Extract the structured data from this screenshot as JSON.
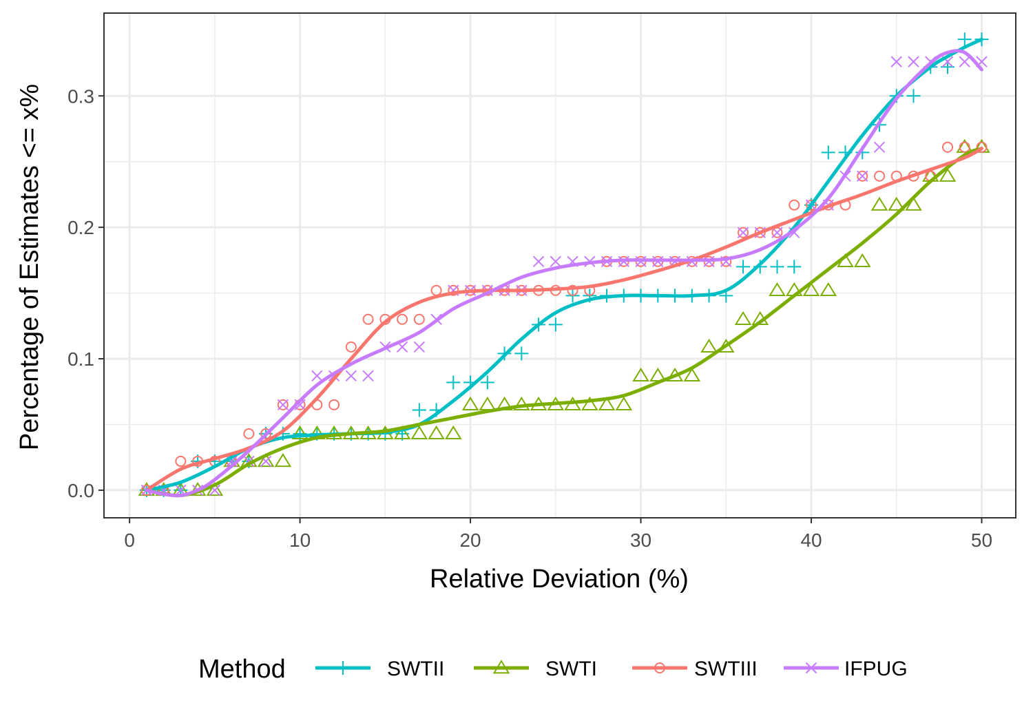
{
  "chart_data": {
    "type": "scatter",
    "xlabel": "Relative Deviation (%)",
    "ylabel": "Percentage of Estimates <= x%",
    "xlim": [
      -1.5,
      52
    ],
    "ylim": [
      -0.021,
      0.363
    ],
    "xticks": [
      0,
      10,
      20,
      30,
      40,
      50
    ],
    "yticks": [
      0.0,
      0.1,
      0.2,
      0.3
    ],
    "xtick_labels": [
      "0",
      "10",
      "20",
      "30",
      "40",
      "50"
    ],
    "ytick_labels": [
      "0.0",
      "0.1",
      "0.2",
      "0.3"
    ],
    "grid": true,
    "legend_title": "Method",
    "legend_position": "bottom",
    "series": [
      {
        "name": "SWTII",
        "color": "#00BFC4",
        "marker": "plus",
        "x": [
          1,
          2,
          3,
          4,
          5,
          6,
          7,
          8,
          9,
          10,
          11,
          12,
          13,
          14,
          15,
          16,
          17,
          18,
          19,
          20,
          21,
          22,
          23,
          24,
          25,
          26,
          27,
          28,
          29,
          30,
          31,
          32,
          33,
          34,
          35,
          36,
          37,
          38,
          39,
          40,
          41,
          42,
          43,
          44,
          45,
          46,
          47,
          48,
          49,
          50
        ],
        "y": [
          0,
          0,
          0,
          0.022,
          0.022,
          0.022,
          0.022,
          0.043,
          0.043,
          0.043,
          0.043,
          0.043,
          0.043,
          0.043,
          0.043,
          0.043,
          0.061,
          0.061,
          0.082,
          0.082,
          0.082,
          0.104,
          0.104,
          0.126,
          0.126,
          0.148,
          0.148,
          0.148,
          0.148,
          0.148,
          0.148,
          0.148,
          0.148,
          0.148,
          0.148,
          0.17,
          0.17,
          0.17,
          0.17,
          0.217,
          0.257,
          0.257,
          0.257,
          0.278,
          0.3,
          0.3,
          0.322,
          0.322,
          0.343,
          0.343
        ],
        "smooth_x": [
          1,
          3,
          5,
          7,
          9,
          11,
          13,
          15,
          17,
          19,
          21,
          23,
          25,
          27,
          29,
          31,
          33,
          35,
          37,
          39,
          41,
          43,
          45,
          47,
          48,
          49,
          50
        ],
        "smooth_y": [
          0,
          0.006,
          0.018,
          0.032,
          0.04,
          0.042,
          0.043,
          0.044,
          0.05,
          0.068,
          0.09,
          0.115,
          0.135,
          0.145,
          0.148,
          0.148,
          0.148,
          0.152,
          0.172,
          0.2,
          0.235,
          0.27,
          0.3,
          0.322,
          0.33,
          0.337,
          0.343
        ]
      },
      {
        "name": "SWTI",
        "color": "#7CAE00",
        "marker": "triangle",
        "x": [
          1,
          2,
          3,
          4,
          5,
          6,
          7,
          8,
          9,
          10,
          11,
          12,
          13,
          14,
          15,
          16,
          17,
          18,
          19,
          20,
          21,
          22,
          23,
          24,
          25,
          26,
          27,
          28,
          29,
          30,
          31,
          32,
          33,
          34,
          35,
          36,
          37,
          38,
          39,
          40,
          41,
          42,
          43,
          44,
          45,
          46,
          47,
          48,
          49,
          50
        ],
        "y": [
          0,
          0,
          0,
          0,
          0,
          0.022,
          0.022,
          0.022,
          0.022,
          0.043,
          0.043,
          0.043,
          0.043,
          0.043,
          0.043,
          0.043,
          0.043,
          0.043,
          0.043,
          0.065,
          0.065,
          0.065,
          0.065,
          0.065,
          0.065,
          0.065,
          0.065,
          0.065,
          0.065,
          0.087,
          0.087,
          0.087,
          0.087,
          0.109,
          0.109,
          0.13,
          0.13,
          0.152,
          0.152,
          0.152,
          0.152,
          0.174,
          0.174,
          0.217,
          0.217,
          0.217,
          0.239,
          0.239,
          0.261,
          0.261
        ],
        "smooth_x": [
          1,
          3,
          5,
          7,
          9,
          11,
          13,
          15,
          17,
          19,
          21,
          23,
          25,
          27,
          29,
          31,
          33,
          35,
          37,
          39,
          41,
          43,
          45,
          47,
          49,
          50
        ],
        "smooth_y": [
          0,
          -0.004,
          0.004,
          0.02,
          0.032,
          0.04,
          0.043,
          0.045,
          0.05,
          0.055,
          0.06,
          0.064,
          0.066,
          0.068,
          0.072,
          0.082,
          0.093,
          0.11,
          0.128,
          0.148,
          0.168,
          0.188,
          0.21,
          0.235,
          0.255,
          0.26
        ]
      },
      {
        "name": "SWTIII",
        "color": "#F8766D",
        "marker": "circle",
        "x": [
          1,
          2,
          3,
          4,
          5,
          6,
          7,
          8,
          9,
          10,
          11,
          12,
          13,
          14,
          15,
          16,
          17,
          18,
          19,
          20,
          21,
          22,
          23,
          24,
          25,
          26,
          27,
          28,
          29,
          30,
          31,
          32,
          33,
          34,
          35,
          36,
          37,
          38,
          39,
          40,
          41,
          42,
          43,
          44,
          45,
          46,
          47,
          48,
          49,
          50
        ],
        "y": [
          0,
          0,
          0.022,
          0.022,
          0.022,
          0.022,
          0.043,
          0.043,
          0.065,
          0.065,
          0.065,
          0.065,
          0.109,
          0.13,
          0.13,
          0.13,
          0.13,
          0.152,
          0.152,
          0.152,
          0.152,
          0.152,
          0.152,
          0.152,
          0.152,
          0.152,
          0.152,
          0.174,
          0.174,
          0.174,
          0.174,
          0.174,
          0.174,
          0.174,
          0.174,
          0.196,
          0.196,
          0.196,
          0.217,
          0.217,
          0.217,
          0.217,
          0.239,
          0.239,
          0.239,
          0.239,
          0.239,
          0.261,
          0.261,
          0.261
        ],
        "smooth_x": [
          1,
          3,
          5,
          7,
          9,
          11,
          13,
          15,
          17,
          19,
          21,
          23,
          25,
          27,
          29,
          31,
          33,
          35,
          37,
          39,
          41,
          43,
          45,
          47,
          49,
          50
        ],
        "smooth_y": [
          0,
          0.016,
          0.024,
          0.032,
          0.045,
          0.07,
          0.1,
          0.128,
          0.143,
          0.15,
          0.152,
          0.152,
          0.153,
          0.155,
          0.16,
          0.167,
          0.175,
          0.185,
          0.196,
          0.206,
          0.216,
          0.225,
          0.235,
          0.244,
          0.253,
          0.26
        ]
      },
      {
        "name": "IFPUG",
        "color": "#C77CFF",
        "marker": "x",
        "x": [
          1,
          2,
          3,
          4,
          5,
          6,
          7,
          8,
          9,
          10,
          11,
          12,
          13,
          14,
          15,
          16,
          17,
          18,
          19,
          20,
          21,
          22,
          23,
          24,
          25,
          26,
          27,
          28,
          29,
          30,
          31,
          32,
          33,
          34,
          35,
          36,
          37,
          38,
          39,
          40,
          41,
          42,
          43,
          44,
          45,
          46,
          47,
          48,
          49,
          50
        ],
        "y": [
          0,
          0,
          0,
          0,
          0,
          0.022,
          0.022,
          0.022,
          0.065,
          0.065,
          0.087,
          0.087,
          0.087,
          0.087,
          0.109,
          0.109,
          0.109,
          0.13,
          0.152,
          0.152,
          0.152,
          0.152,
          0.152,
          0.174,
          0.174,
          0.174,
          0.174,
          0.174,
          0.174,
          0.174,
          0.174,
          0.174,
          0.174,
          0.174,
          0.174,
          0.196,
          0.196,
          0.196,
          0.196,
          0.217,
          0.217,
          0.239,
          0.239,
          0.261,
          0.326,
          0.326,
          0.326,
          0.326,
          0.326,
          0.326
        ],
        "smooth_x": [
          1,
          2,
          3,
          4,
          5,
          7,
          9,
          11,
          13,
          15,
          17,
          19,
          21,
          23,
          25,
          27,
          29,
          31,
          33,
          35,
          37,
          39,
          41,
          43,
          45,
          47,
          48,
          49,
          50
        ],
        "smooth_y": [
          0,
          -0.003,
          -0.004,
          0,
          0.008,
          0.03,
          0.055,
          0.08,
          0.096,
          0.108,
          0.12,
          0.138,
          0.15,
          0.162,
          0.169,
          0.173,
          0.175,
          0.175,
          0.175,
          0.176,
          0.183,
          0.198,
          0.222,
          0.26,
          0.298,
          0.325,
          0.333,
          0.333,
          0.32
        ]
      }
    ]
  }
}
